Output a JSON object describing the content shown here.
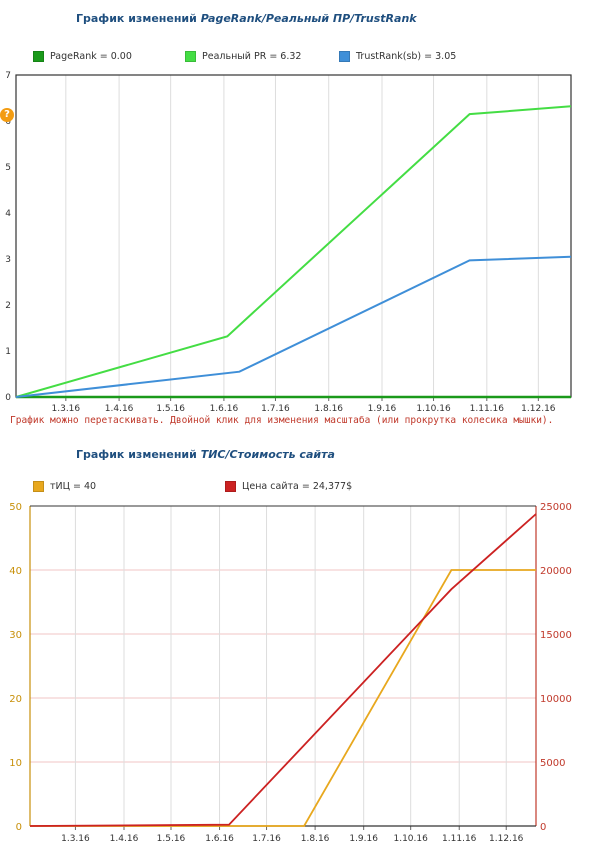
{
  "chart1": {
    "title_plain": "График изменений ",
    "title_italic": "PageRank/Реальный ПР/TrustRank",
    "note": "График можно перетаскивать. Двойной клик для изменения масштаба (или прокрутка колесика мышки).",
    "help_icon": "?"
  },
  "chart2": {
    "title_plain": "График изменений ",
    "title_italic": "ТИС/Стоимость сайта"
  },
  "chart_data": [
    {
      "type": "line",
      "title": "График изменений PageRank/Реальный ПР/TrustRank",
      "x_ticks": [
        "1.3.16",
        "1.4.16",
        "1.5.16",
        "1.6.16",
        "1.7.16",
        "1.8.16",
        "1.9.16",
        "1.10.16",
        "1.11.16",
        "1.12.16"
      ],
      "x_range": [
        "2016-02-01",
        "2016-12-20"
      ],
      "ylim": [
        0,
        7
      ],
      "y_ticks": [
        0,
        1,
        2,
        3,
        4,
        5,
        6,
        7
      ],
      "grid": true,
      "legend_position": "top",
      "series": [
        {
          "name": "PageRank = 0.00",
          "color": "#1a9a1a",
          "points": [
            [
              "2016-02-01",
              0
            ],
            [
              "2016-12-20",
              0
            ]
          ]
        },
        {
          "name": "Реальный PR = 6.32",
          "color": "#44dd44",
          "points": [
            [
              "2016-02-01",
              0
            ],
            [
              "2016-06-03",
              1.32
            ],
            [
              "2016-10-22",
              6.15
            ],
            [
              "2016-12-20",
              6.32
            ]
          ]
        },
        {
          "name": "TrustRank(sb) = 3.05",
          "color": "#3f8fd8",
          "points": [
            [
              "2016-02-01",
              0
            ],
            [
              "2016-06-10",
              0.55
            ],
            [
              "2016-10-22",
              2.97
            ],
            [
              "2016-12-20",
              3.05
            ]
          ]
        }
      ]
    },
    {
      "type": "line",
      "title": "График изменений ТИС/Стоимость сайта",
      "x_ticks": [
        "1.3.16",
        "1.4.16",
        "1.5.16",
        "1.6.16",
        "1.7.16",
        "1.8.16",
        "1.9.16",
        "1.10.16",
        "1.11.16",
        "1.12.16"
      ],
      "x_range": [
        "2016-02-01",
        "2016-12-20"
      ],
      "ylim_left": [
        0,
        50
      ],
      "y_ticks_left": [
        0,
        10,
        20,
        30,
        40,
        50
      ],
      "ylim_right": [
        0,
        25000
      ],
      "y_ticks_right": [
        0,
        5000,
        10000,
        15000,
        20000,
        25000
      ],
      "grid": true,
      "legend_position": "top",
      "series": [
        {
          "name": "тИЦ = 40",
          "color": "#e8a81e",
          "axis": "left",
          "points": [
            [
              "2016-02-01",
              0
            ],
            [
              "2016-07-25",
              0
            ],
            [
              "2016-10-27",
              40
            ],
            [
              "2016-12-20",
              40
            ]
          ]
        },
        {
          "name": "Цена сайта = 24,377$",
          "color": "#cc2222",
          "axis": "right",
          "points": [
            [
              "2016-02-01",
              0
            ],
            [
              "2016-06-07",
              100
            ],
            [
              "2016-10-27",
              18500
            ],
            [
              "2016-12-20",
              24377
            ]
          ]
        }
      ]
    }
  ]
}
